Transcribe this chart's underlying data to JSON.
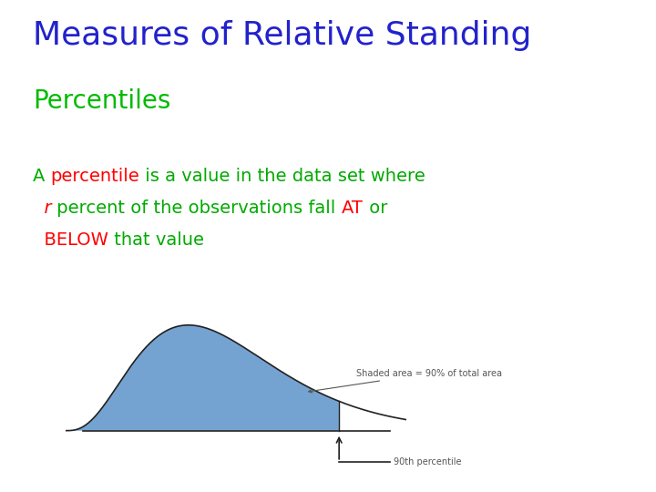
{
  "title": "Measures of Relative Standing",
  "title_color": "#2222CC",
  "subtitle": "Percentiles",
  "subtitle_color": "#00BB00",
  "body_line1_parts": [
    {
      "text": "A ",
      "color": "#00AA00",
      "style": "normal"
    },
    {
      "text": "percentile",
      "color": "#FF0000",
      "style": "normal"
    },
    {
      "text": " is a value in the data set where",
      "color": "#00AA00",
      "style": "normal"
    }
  ],
  "body_line2_parts": [
    {
      "text": "  r",
      "color": "#FF0000",
      "style": "italic"
    },
    {
      "text": " percent of the observations fall ",
      "color": "#00AA00",
      "style": "normal"
    },
    {
      "text": "AT",
      "color": "#FF0000",
      "style": "normal"
    },
    {
      "text": " or",
      "color": "#00AA00",
      "style": "normal"
    }
  ],
  "body_line3_parts": [
    {
      "text": "  BELOW",
      "color": "#FF0000",
      "style": "normal"
    },
    {
      "text": " that value",
      "color": "#00AA00",
      "style": "normal"
    }
  ],
  "curve_fill_color": "#6699CC",
  "curve_line_color": "#222222",
  "annotation_text": "Shaded area = 90% of total area",
  "percentile_label": "90th percentile",
  "background_color": "#FFFFFF",
  "title_fontsize": 26,
  "subtitle_fontsize": 20,
  "body_fontsize": 14
}
